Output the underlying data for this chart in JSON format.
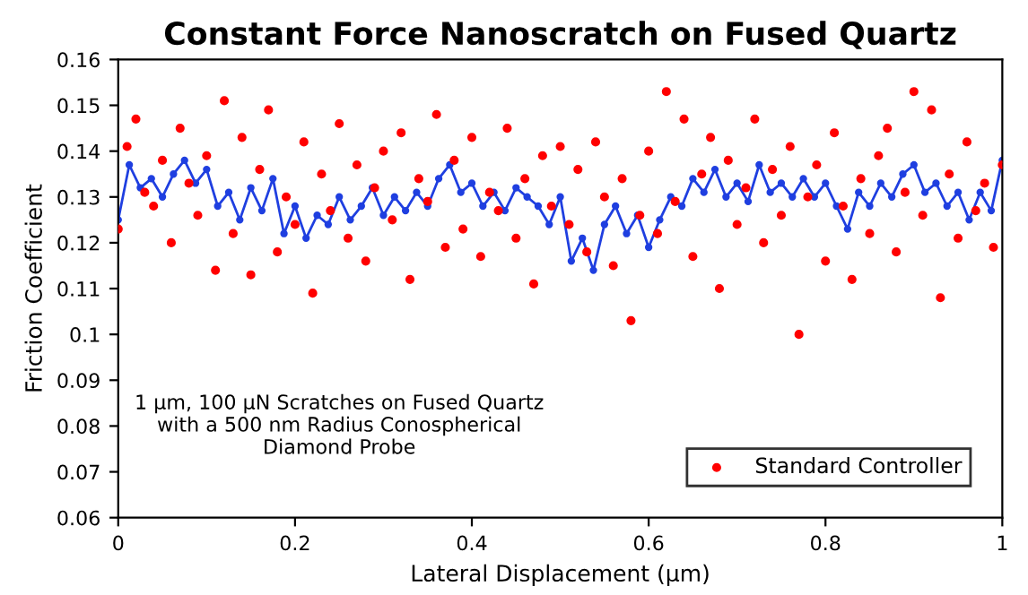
{
  "chart_data": {
    "type": "line",
    "title": "Constant Force Nanoscratch on Fused Quartz",
    "xlabel": "Lateral Displacement (μm)",
    "ylabel": "Friction Coefficient",
    "xlim": [
      0,
      1
    ],
    "xticks": [
      0,
      0.2,
      0.4,
      0.6,
      0.8,
      1
    ],
    "ylim": [
      0.06,
      0.16
    ],
    "yticks": [
      0.06,
      0.07,
      0.08,
      0.09,
      0.1,
      0.11,
      0.12,
      0.13,
      0.14,
      0.15,
      0.16
    ],
    "grid": false,
    "legend": "bottom right",
    "annotations": [
      "1 μm, 100 μN Scratches on Fused Quartz\nwith a 500 nm Radius Conospherical\nDiamond Probe"
    ],
    "series": [
      {
        "marker": "circle",
        "color": "#1f3fe0",
        "x": [
          0,
          0.0125,
          0.025,
          0.0375,
          0.05,
          0.0625,
          0.075,
          0.0875,
          0.1,
          0.1125,
          0.125,
          0.1375,
          0.15,
          0.1625,
          0.175,
          0.1875,
          0.2,
          0.2125,
          0.225,
          0.2375,
          0.25,
          0.2625,
          0.275,
          0.2875,
          0.3,
          0.3125,
          0.325,
          0.3375,
          0.35,
          0.3625,
          0.375,
          0.3875,
          0.4,
          0.4125,
          0.425,
          0.4375,
          0.45,
          0.4625,
          0.475,
          0.4875,
          0.5,
          0.5125,
          0.525,
          0.5375,
          0.55,
          0.5625,
          0.575,
          0.5875,
          0.6,
          0.6125,
          0.625,
          0.6375,
          0.65,
          0.6625,
          0.675,
          0.6875,
          0.7,
          0.7125,
          0.725,
          0.7375,
          0.75,
          0.7625,
          0.775,
          0.7875,
          0.8,
          0.8125,
          0.825,
          0.8375,
          0.85,
          0.8625,
          0.875,
          0.8875,
          0.9,
          0.9125,
          0.925,
          0.9375,
          0.95,
          0.9625,
          0.975,
          0.9875,
          1.0
        ],
        "values": [
          0.125,
          0.137,
          0.132,
          0.134,
          0.13,
          0.135,
          0.138,
          0.133,
          0.136,
          0.128,
          0.131,
          0.125,
          0.132,
          0.127,
          0.134,
          0.122,
          0.128,
          0.121,
          0.126,
          0.124,
          0.13,
          0.125,
          0.128,
          0.132,
          0.126,
          0.13,
          0.127,
          0.131,
          0.128,
          0.134,
          0.137,
          0.131,
          0.133,
          0.128,
          0.131,
          0.127,
          0.132,
          0.13,
          0.128,
          0.124,
          0.13,
          0.116,
          0.121,
          0.114,
          0.124,
          0.128,
          0.122,
          0.126,
          0.119,
          0.125,
          0.13,
          0.128,
          0.134,
          0.131,
          0.136,
          0.13,
          0.133,
          0.129,
          0.137,
          0.131,
          0.133,
          0.13,
          0.134,
          0.13,
          0.133,
          0.128,
          0.123,
          0.131,
          0.128,
          0.133,
          0.13,
          0.135,
          0.137,
          0.131,
          0.133,
          0.128,
          0.131,
          0.125,
          0.131,
          0.127,
          0.138
        ]
      },
      {
        "type": "scatter",
        "name": "Standard Controller",
        "marker": "circle",
        "color": "#ff0000",
        "x": [
          0,
          0.01,
          0.02,
          0.03,
          0.04,
          0.05,
          0.06,
          0.07,
          0.08,
          0.09,
          0.1,
          0.11,
          0.12,
          0.13,
          0.14,
          0.15,
          0.16,
          0.17,
          0.18,
          0.19,
          0.2,
          0.21,
          0.22,
          0.23,
          0.24,
          0.25,
          0.26,
          0.27,
          0.28,
          0.29,
          0.3,
          0.31,
          0.32,
          0.33,
          0.34,
          0.35,
          0.36,
          0.37,
          0.38,
          0.39,
          0.4,
          0.41,
          0.42,
          0.43,
          0.44,
          0.45,
          0.46,
          0.47,
          0.48,
          0.49,
          0.5,
          0.51,
          0.52,
          0.53,
          0.54,
          0.55,
          0.56,
          0.57,
          0.58,
          0.59,
          0.6,
          0.61,
          0.62,
          0.63,
          0.64,
          0.65,
          0.66,
          0.67,
          0.68,
          0.69,
          0.7,
          0.71,
          0.72,
          0.73,
          0.74,
          0.75,
          0.76,
          0.77,
          0.78,
          0.79,
          0.8,
          0.81,
          0.82,
          0.83,
          0.84,
          0.85,
          0.86,
          0.87,
          0.88,
          0.89,
          0.9,
          0.91,
          0.92,
          0.93,
          0.94,
          0.95,
          0.96,
          0.97,
          0.98,
          0.99,
          1.0
        ],
        "values": [
          0.123,
          0.141,
          0.147,
          0.131,
          0.128,
          0.138,
          0.12,
          0.145,
          0.133,
          0.126,
          0.139,
          0.114,
          0.151,
          0.122,
          0.143,
          0.113,
          0.136,
          0.149,
          0.118,
          0.13,
          0.124,
          0.142,
          0.109,
          0.135,
          0.127,
          0.146,
          0.121,
          0.137,
          0.116,
          0.132,
          0.14,
          0.125,
          0.144,
          0.112,
          0.134,
          0.129,
          0.148,
          0.119,
          0.138,
          0.123,
          0.143,
          0.117,
          0.131,
          0.127,
          0.145,
          0.121,
          0.134,
          0.111,
          0.139,
          0.128,
          0.141,
          0.124,
          0.136,
          0.118,
          0.142,
          0.13,
          0.115,
          0.134,
          0.103,
          0.126,
          0.14,
          0.122,
          0.153,
          0.129,
          0.147,
          0.117,
          0.135,
          0.143,
          0.11,
          0.138,
          0.124,
          0.132,
          0.147,
          0.12,
          0.136,
          0.126,
          0.141,
          0.1,
          0.13,
          0.137,
          0.116,
          0.144,
          0.128,
          0.112,
          0.134,
          0.122,
          0.139,
          0.145,
          0.118,
          0.131,
          0.153,
          0.126,
          0.149,
          0.108,
          0.135,
          0.121,
          0.142,
          0.127,
          0.133,
          0.119,
          0.137
        ]
      }
    ]
  }
}
